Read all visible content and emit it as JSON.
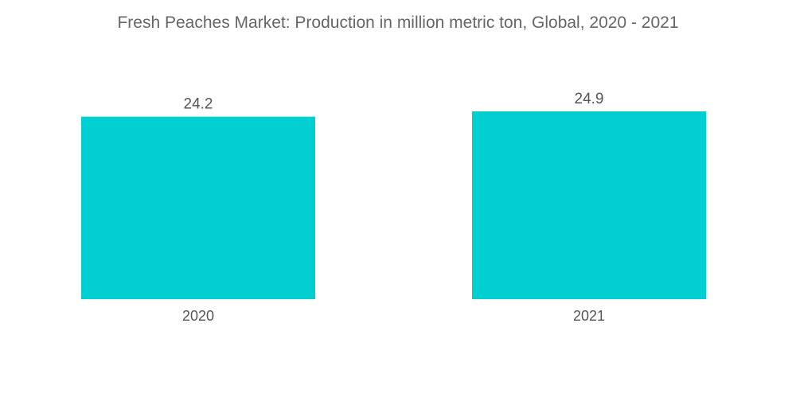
{
  "chart_data": {
    "type": "bar",
    "title": "Fresh Peaches Market: Production in million metric ton, Global, 2020 - 2021",
    "categories": [
      "2020",
      "2021"
    ],
    "values": [
      24.2,
      24.9
    ],
    "data_labels": [
      "24.2",
      "24.9"
    ],
    "xlabel": "",
    "ylabel": "",
    "ylim": [
      0,
      24.9
    ],
    "grid": false,
    "legend": "none",
    "bar_color": "#00CED1",
    "label_color": "#555555"
  }
}
